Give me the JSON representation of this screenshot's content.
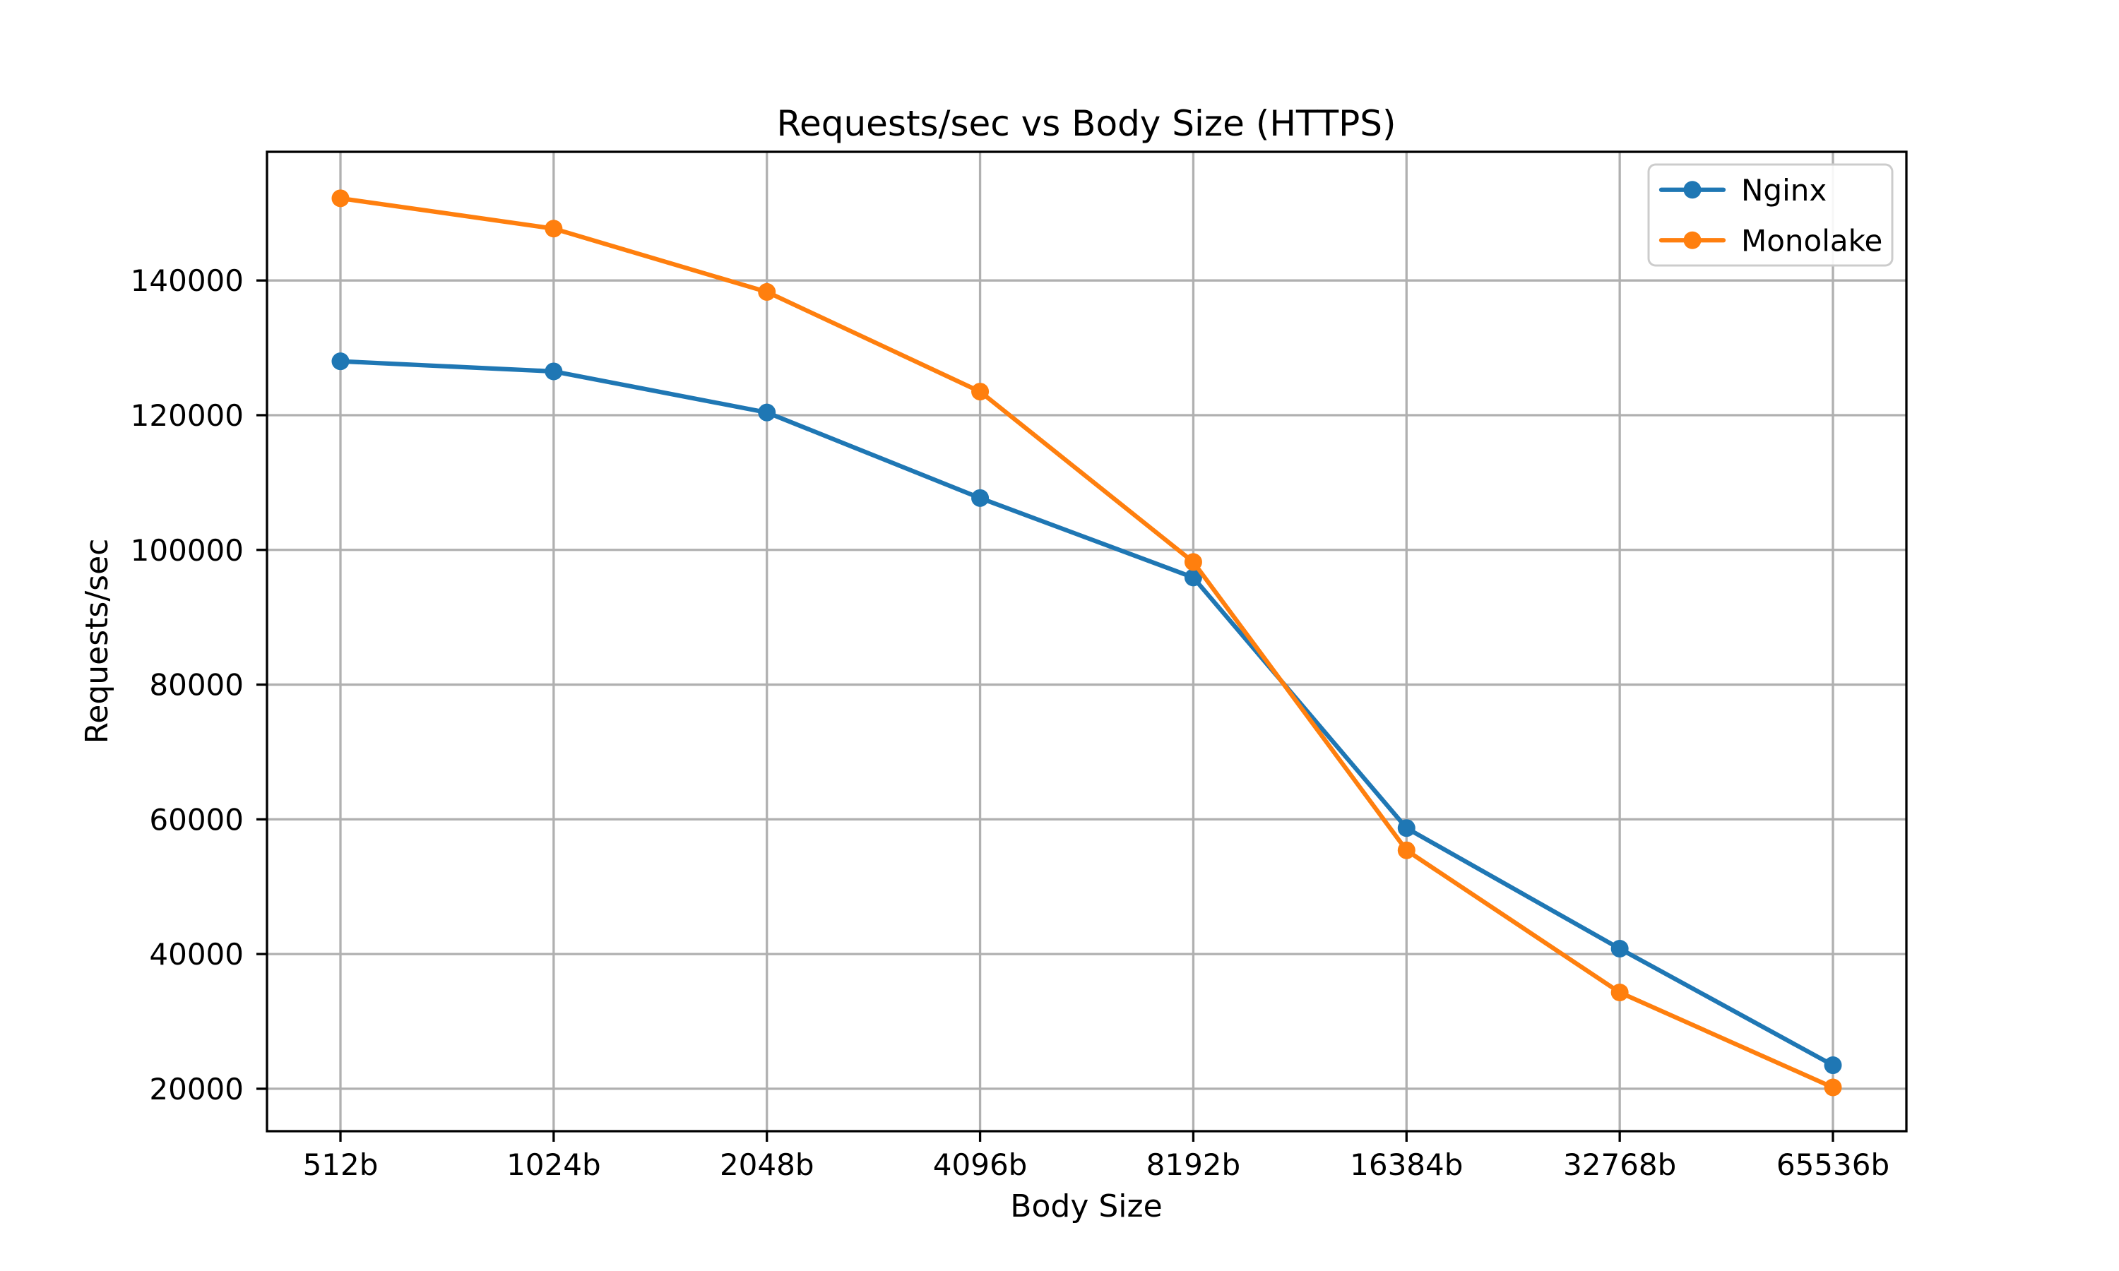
{
  "chart_data": {
    "type": "line",
    "title": "Requests/sec vs Body Size (HTTPS)",
    "xlabel": "Body Size",
    "ylabel": "Requests/sec",
    "categories": [
      "512b",
      "1024b",
      "2048b",
      "4096b",
      "8192b",
      "16384b",
      "32768b",
      "65536b"
    ],
    "series": [
      {
        "name": "Nginx",
        "color": "#1f77b4",
        "values": [
          128000,
          126500,
          120400,
          107700,
          95900,
          58700,
          40800,
          23500
        ]
      },
      {
        "name": "Monolake",
        "color": "#ff7f0e",
        "values": [
          152200,
          147700,
          138300,
          123500,
          98200,
          55400,
          34300,
          20200
        ]
      }
    ],
    "yticks": [
      20000,
      40000,
      60000,
      80000,
      100000,
      120000,
      140000
    ],
    "ylim": [
      13700,
      159100
    ],
    "grid": true,
    "grid_color": "#b0b0b0",
    "spine_color": "#000000",
    "legend_position": "upper right",
    "marker": "circle"
  }
}
